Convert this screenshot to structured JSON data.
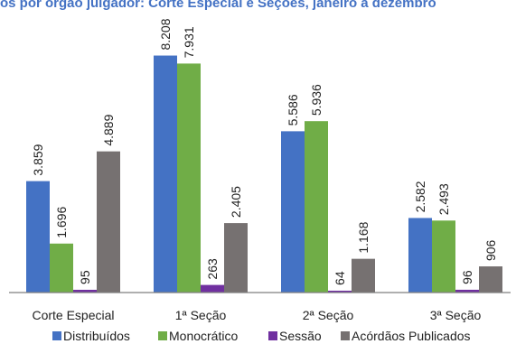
{
  "chart_data": {
    "type": "bar",
    "title": "Distribuídos por órgão julgador: Corte Especial e Seções, janeiro a dezembro",
    "categories": [
      "Corte Especial",
      "1ª Seção",
      "2ª Seção",
      "3ª Seção"
    ],
    "series": [
      {
        "name": "Distribuídos",
        "color": "#4472C4",
        "values": [
          3859,
          8208,
          5586,
          2582
        ],
        "labels": [
          "3.859",
          "8.208",
          "5.586",
          "2.582"
        ]
      },
      {
        "name": "Monocrático",
        "color": "#70AD47",
        "values": [
          1696,
          7931,
          5936,
          2493
        ],
        "labels": [
          "1.696",
          "7.931",
          "5.936",
          "2.493"
        ]
      },
      {
        "name": "Sessão",
        "color": "#7030A0",
        "values": [
          95,
          263,
          64,
          96
        ],
        "labels": [
          "95",
          "263",
          "64",
          "96"
        ]
      },
      {
        "name": "Acórdãos Publicados",
        "color": "#767171",
        "values": [
          4889,
          2405,
          1168,
          906
        ],
        "labels": [
          "4.889",
          "2.405",
          "1.168",
          "906"
        ]
      }
    ],
    "ylim": [
      0,
      8600
    ],
    "grid": false,
    "legend_position": "bottom",
    "title_color": "#4472C4"
  }
}
